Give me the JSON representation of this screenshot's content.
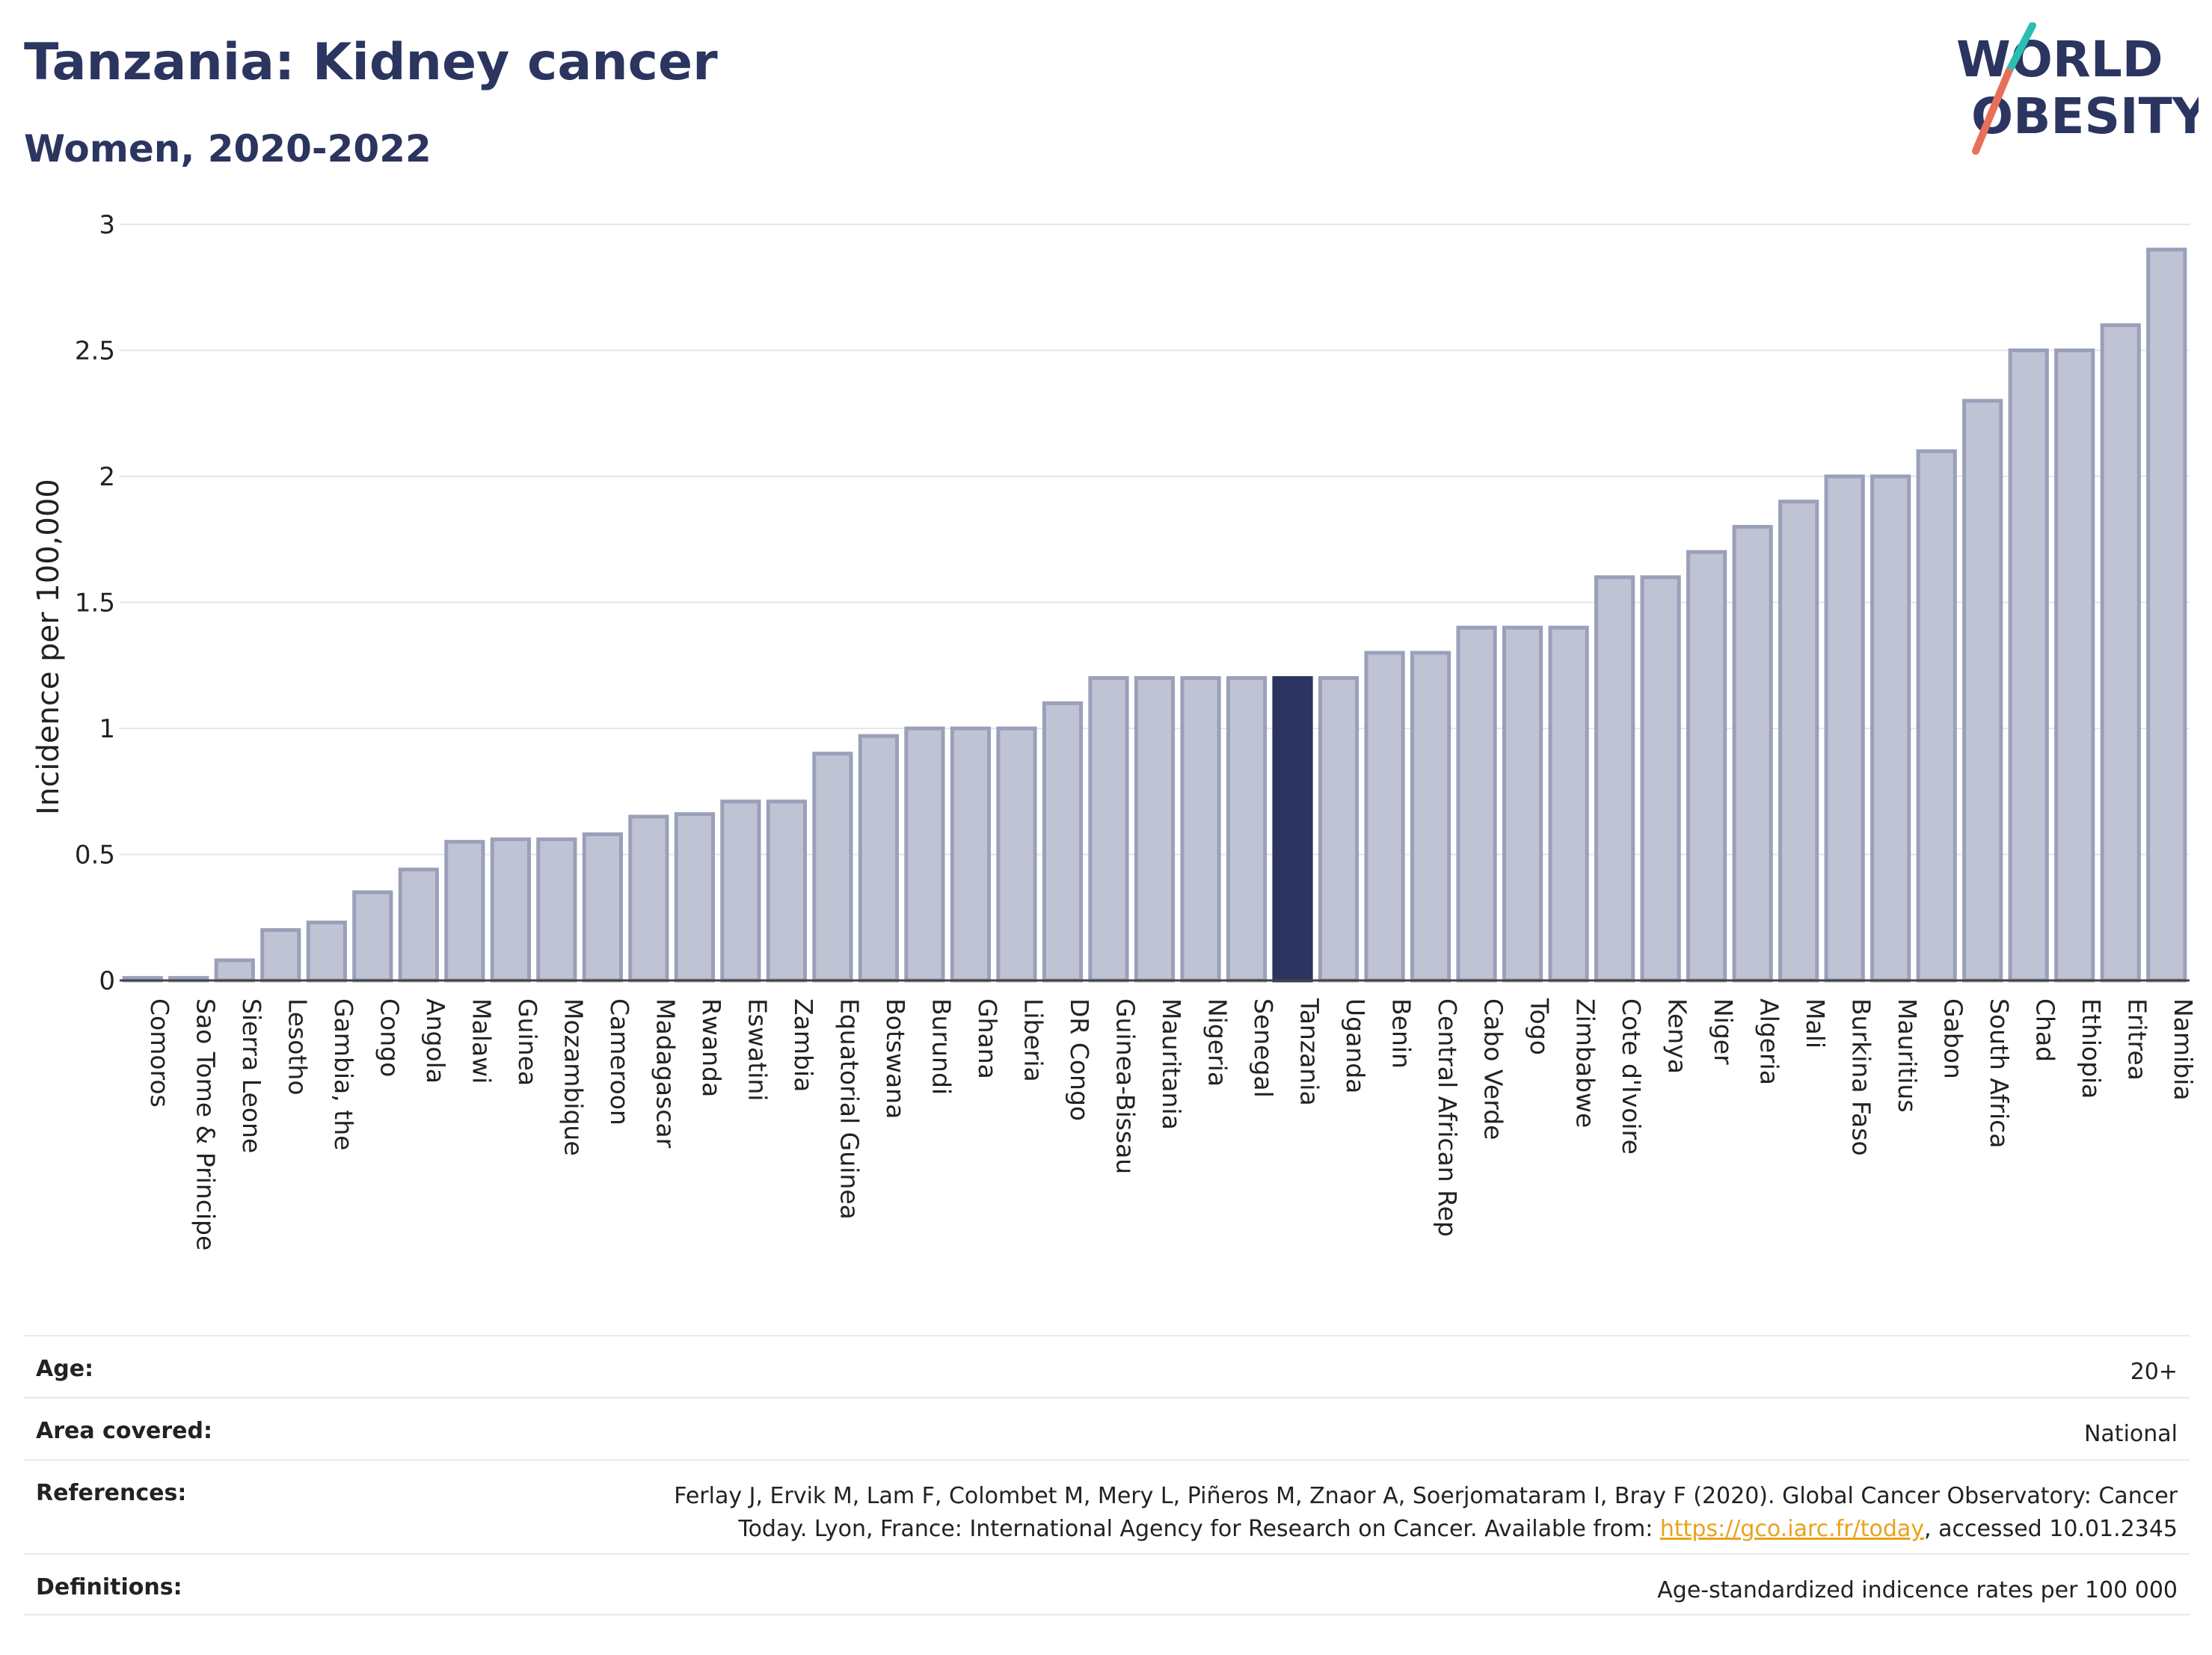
{
  "header": {
    "title": "Tanzania: Kidney cancer",
    "subtitle": "Women, 2020-2022"
  },
  "logo": {
    "line1": "WORLD",
    "line2": "OBESITY",
    "colors": {
      "text": "#2b3560",
      "slash_teal": "#2bbfb3",
      "slash_coral": "#e8705a"
    }
  },
  "colors": {
    "bar_fill": "#bfc3d3",
    "bar_stroke": "#9aa0b9",
    "highlight_fill": "#2b3560",
    "grid": "#e6e6ee",
    "axis": "#444444"
  },
  "chart_data": {
    "type": "bar",
    "ylabel": "Incidence per 100,000",
    "xlabel": "",
    "ylim": [
      0,
      3
    ],
    "yticks": [
      0,
      0.5,
      1,
      1.5,
      2,
      2.5,
      3
    ],
    "ytick_labels": [
      "0",
      "0.5",
      "1",
      "1.5",
      "2",
      "2.5",
      "3"
    ],
    "grid": true,
    "highlight": "Tanzania",
    "categories": [
      "Comoros",
      "Sao Tome & Principe",
      "Sierra Leone",
      "Lesotho",
      "Gambia, the",
      "Congo",
      "Angola",
      "Malawi",
      "Guinea",
      "Mozambique",
      "Cameroon",
      "Madagascar",
      "Rwanda",
      "Eswatini",
      "Zambia",
      "Equatorial Guinea",
      "Botswana",
      "Burundi",
      "Ghana",
      "Liberia",
      "DR Congo",
      "Guinea-Bissau",
      "Mauritania",
      "Nigeria",
      "Senegal",
      "Tanzania",
      "Uganda",
      "Benin",
      "Central African Rep",
      "Cabo Verde",
      "Togo",
      "Zimbabwe",
      "Cote d'Ivoire",
      "Kenya",
      "Niger",
      "Algeria",
      "Mali",
      "Burkina Faso",
      "Mauritius",
      "Gabon",
      "South Africa",
      "Chad",
      "Ethiopia",
      "Eritrea",
      "Namibia"
    ],
    "values": [
      0.01,
      0.01,
      0.08,
      0.2,
      0.23,
      0.35,
      0.44,
      0.55,
      0.56,
      0.56,
      0.58,
      0.65,
      0.66,
      0.71,
      0.71,
      0.9,
      0.97,
      1.0,
      1.0,
      1.0,
      1.1,
      1.2,
      1.2,
      1.2,
      1.2,
      1.2,
      1.2,
      1.3,
      1.3,
      1.4,
      1.4,
      1.4,
      1.6,
      1.6,
      1.7,
      1.8,
      1.9,
      2.0,
      2.0,
      2.1,
      2.3,
      2.5,
      2.5,
      2.6,
      2.9
    ]
  },
  "info": {
    "age_label": "Age:",
    "age_value": "20+",
    "area_label": "Area covered:",
    "area_value": "National",
    "references_label": "References:",
    "references_line1": "Ferlay J, Ervik M, Lam F, Colombet M, Mery L, Piñeros M, Znaor A, Soerjomataram I, Bray F (2020). Global Cancer Observatory: Cancer",
    "references_line2_pre": "Today. Lyon, France: International Agency for Research on Cancer. Available from: ",
    "references_link": "https://gco.iarc.fr/today",
    "references_line2_post": ", accessed 10.01.2345",
    "definitions_label": "Definitions:",
    "definitions_value": "Age-standardized indicence rates per 100 000"
  }
}
